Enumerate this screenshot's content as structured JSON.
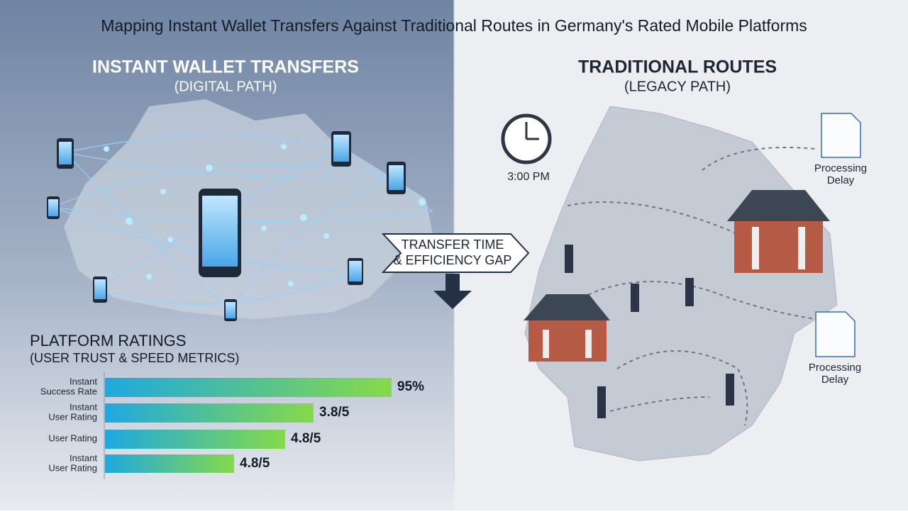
{
  "title": "Mapping Instant Wallet Transfers Against Traditional Routes in Germany's  Rated Mobile Platforms",
  "left": {
    "heading": "INSTANT WALLET TRANSFERS",
    "subheading": "(DIGITAL PATH)"
  },
  "right": {
    "heading": "TRADITIONAL ROUTES",
    "subheading": "(LEGACY PATH)",
    "clock_time": "3:00 PM",
    "notes": [
      [
        "Processing",
        "Delay"
      ],
      [
        "Processing",
        "Delay"
      ]
    ]
  },
  "center": {
    "lines": [
      "TRANSFER TIME",
      "& EFFICIENCY GAP"
    ]
  },
  "ratings": {
    "title": "PLATFORM RATINGS",
    "subtitle": "(USER TRUST & SPEED METRICS)",
    "rows": [
      {
        "label": [
          "Instant",
          "Success Rate"
        ],
        "value": "95%"
      },
      {
        "label": [
          "Instant",
          "User Rating"
        ],
        "value": "3.8/5"
      },
      {
        "label": [
          "User Rating"
        ],
        "value": "4.8/5"
      },
      {
        "label": [
          "Instant",
          "User Rating"
        ],
        "value": "4.8/5"
      }
    ]
  }
}
